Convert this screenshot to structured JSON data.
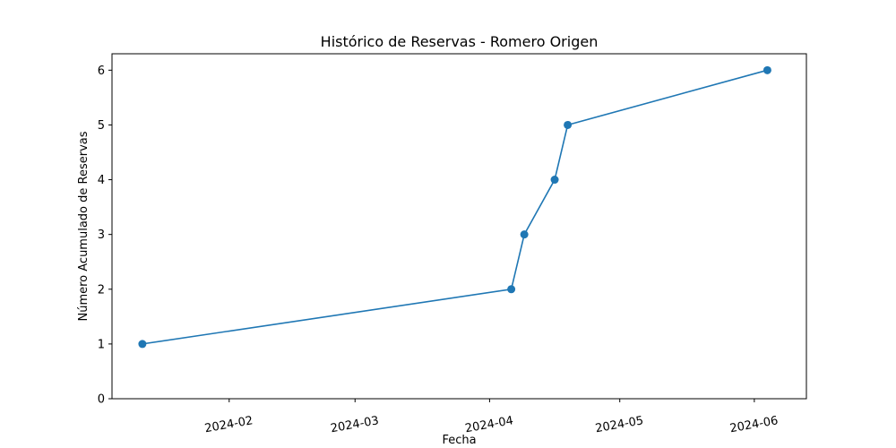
{
  "chart_data": {
    "type": "line",
    "title": "Histórico de Reservas - Romero Origen",
    "xlabel": "Fecha",
    "ylabel": "Número Acumulado de Reservas",
    "x_ticks": [
      "2024-02",
      "2024-03",
      "2024-04",
      "2024-05",
      "2024-06"
    ],
    "y_ticks": [
      0,
      1,
      2,
      3,
      4,
      5,
      6
    ],
    "ylim": [
      0,
      6.3
    ],
    "xlim": [
      "2024-01-05",
      "2024-06-13"
    ],
    "grid": false,
    "series": [
      {
        "color": "#1f77b4",
        "marker": "circle",
        "points": [
          {
            "x": "2024-01-12",
            "y": 1
          },
          {
            "x": "2024-04-06",
            "y": 2
          },
          {
            "x": "2024-04-09",
            "y": 3
          },
          {
            "x": "2024-04-16",
            "y": 4
          },
          {
            "x": "2024-04-19",
            "y": 5
          },
          {
            "x": "2024-06-04",
            "y": 6
          }
        ]
      }
    ]
  }
}
